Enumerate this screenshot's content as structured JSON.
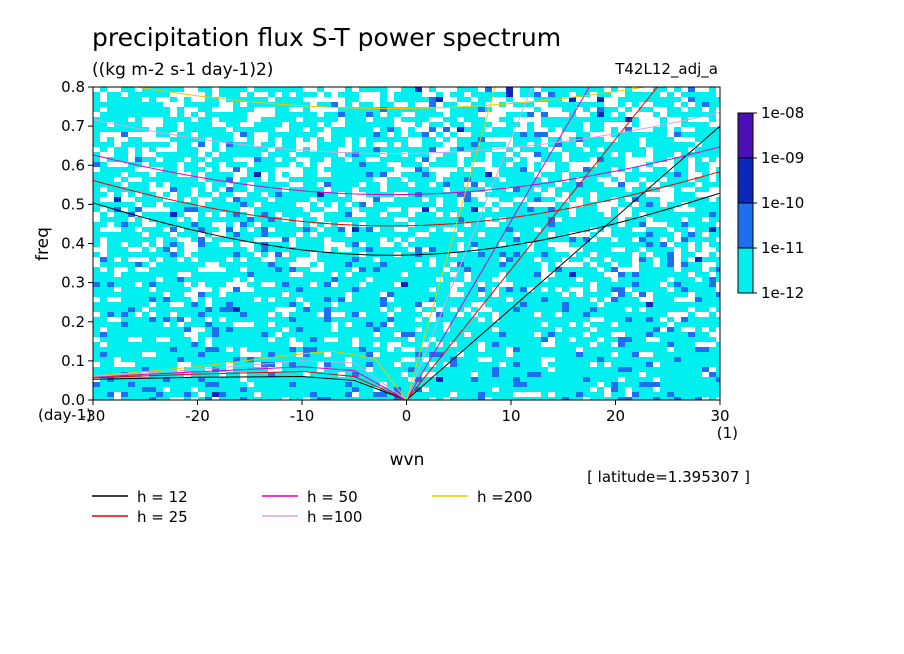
{
  "chart_data": {
    "type": "heatmap",
    "title": "precipitation flux S-T power spectrum",
    "units": "((kg m-2 s-1 day-1)2)",
    "experiment": "T42L12_adj_a",
    "xlabel": "wvn",
    "ylabel": "freq",
    "x_unit": "(1)",
    "y_unit": "(day-1)",
    "xlim": [
      -30,
      30
    ],
    "ylim": [
      0,
      0.8
    ],
    "xticks": [
      "-30",
      "-20",
      "-10",
      "0",
      "10",
      "20",
      "30"
    ],
    "yticks": [
      "0.0",
      "0.1",
      "0.2",
      "0.3",
      "0.4",
      "0.5",
      "0.6",
      "0.7",
      "0.8"
    ],
    "colorbar": {
      "levels": [
        "1e-08",
        "1e-09",
        "1e-10",
        "1e-11",
        "1e-12"
      ],
      "colors": [
        "#4b0fb4",
        "#0a28b9",
        "#1e6ef0",
        "#00f0f0"
      ]
    },
    "latitude_note": "[ latitude=1.395307 ]",
    "dispersion_curves": [
      {
        "name": "h = 12",
        "color": "#000000",
        "kelvin": [
          [
            0,
            0
          ],
          [
            30,
            0.7
          ]
        ],
        "rossby": [
          [
            -30,
            0.053
          ],
          [
            -20,
            0.058
          ],
          [
            -10,
            0.06
          ],
          [
            -5,
            0.05
          ],
          [
            0,
            0
          ]
        ],
        "gravity_min": 0.37
      },
      {
        "name": "h = 25",
        "color": "#ee0000",
        "kelvin": [
          [
            0,
            0
          ],
          [
            24,
            0.8
          ]
        ],
        "rossby": [
          [
            -30,
            0.057
          ],
          [
            -20,
            0.066
          ],
          [
            -10,
            0.073
          ],
          [
            -5,
            0.06
          ],
          [
            0,
            0
          ]
        ],
        "gravity_min": 0.445
      },
      {
        "name": "h = 50",
        "color": "#dd00bb",
        "kelvin": [
          [
            0,
            0
          ],
          [
            17.5,
            0.8
          ]
        ],
        "rossby": [
          [
            -30,
            0.059
          ],
          [
            -20,
            0.072
          ],
          [
            -10,
            0.085
          ],
          [
            -5,
            0.075
          ],
          [
            0,
            0
          ]
        ],
        "gravity_min": 0.525
      },
      {
        "name": "h =100",
        "color": "#d9a3e6",
        "kelvin": [
          [
            0,
            0
          ],
          [
            12,
            0.8
          ]
        ],
        "rossby": [
          [
            -30,
            0.06
          ],
          [
            -20,
            0.078
          ],
          [
            -10,
            0.1
          ],
          [
            -5,
            0.095
          ],
          [
            0,
            0
          ]
        ],
        "gravity_min": 0.63
      },
      {
        "name": "h =200",
        "color": "#e6c800",
        "kelvin": [
          [
            0,
            0
          ],
          [
            8.5,
            0.8
          ]
        ],
        "rossby": [
          [
            -30,
            0.061
          ],
          [
            -20,
            0.085
          ],
          [
            -10,
            0.118
          ],
          [
            -7,
            0.125
          ],
          [
            -3,
            0.105
          ],
          [
            0,
            0
          ]
        ],
        "gravity_min": 0.745
      }
    ],
    "legend": [
      {
        "label": "h = 12",
        "color": "#000000"
      },
      {
        "label": "h = 25",
        "color": "#ee0000"
      },
      {
        "label": "h = 50",
        "color": "#dd00bb"
      },
      {
        "label": "h =100",
        "color": "#d9a3e6"
      },
      {
        "label": "h =200",
        "color": "#e6c800"
      }
    ]
  }
}
